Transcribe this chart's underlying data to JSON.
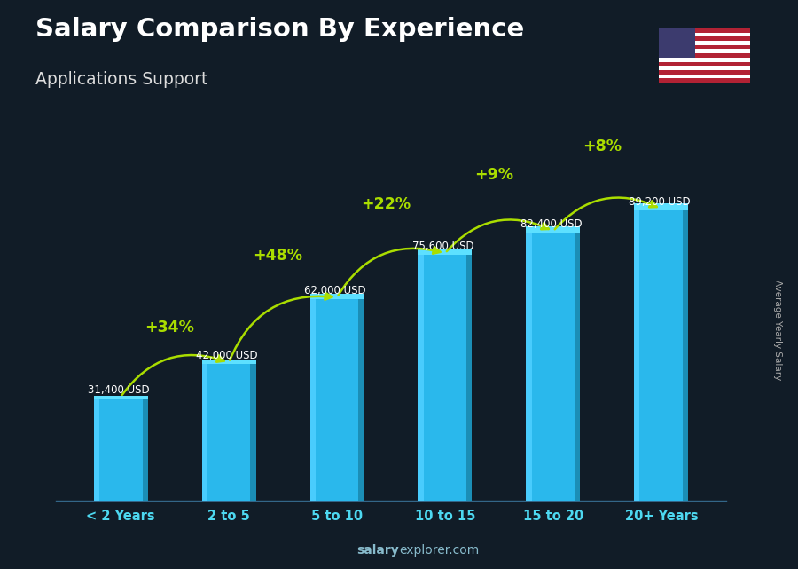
{
  "title": "Salary Comparison By Experience",
  "subtitle": "Applications Support",
  "categories": [
    "< 2 Years",
    "2 to 5",
    "5 to 10",
    "10 to 15",
    "15 to 20",
    "20+ Years"
  ],
  "values": [
    31400,
    42000,
    62000,
    75600,
    82400,
    89200
  ],
  "labels": [
    "31,400 USD",
    "42,000 USD",
    "62,000 USD",
    "75,600 USD",
    "82,400 USD",
    "89,200 USD"
  ],
  "pct_changes": [
    "+34%",
    "+48%",
    "+22%",
    "+9%",
    "+8%"
  ],
  "bar_color_main": "#2ab8ec",
  "bar_color_left": "#4dcfff",
  "bar_color_right": "#1a8ab0",
  "bar_color_top": "#5de0ff",
  "pct_color": "#aadd00",
  "label_color": "#ffffff",
  "title_color": "#ffffff",
  "subtitle_color": "#dddddd",
  "bg_color": "#111c27",
  "tick_color": "#4dd8f0",
  "ylabel": "Average Yearly Salary",
  "footer_salary": "salary",
  "footer_rest": "explorer.com",
  "footer_color": "#88bbcc",
  "ylim": [
    0,
    105000
  ],
  "bar_width": 0.5,
  "depth": 0.08
}
